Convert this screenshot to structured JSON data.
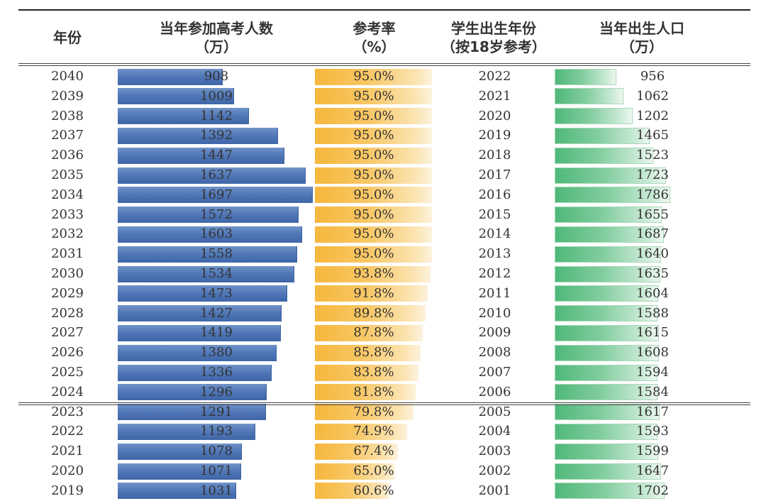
{
  "chart_data": {
    "type": "table",
    "columns": [
      {
        "key": "year",
        "label": [
          "年份"
        ]
      },
      {
        "key": "exam",
        "label": [
          "当年参加高考人数",
          "（万）"
        ]
      },
      {
        "key": "rate",
        "label": [
          "参考率",
          "（%）"
        ]
      },
      {
        "key": "birth_year",
        "label": [
          "学生出生年份",
          "（按18岁参考）"
        ]
      },
      {
        "key": "births",
        "label": [
          "当年出生人口",
          "（万）"
        ]
      }
    ],
    "bar_colors": {
      "exam": "#4f76b6",
      "rate": "#f6b73c",
      "births": "#4fb87a"
    },
    "rows": [
      {
        "year": "2040",
        "exam": 908,
        "rate": "95.0%",
        "rate_value": 95.0,
        "birth_year": "2022",
        "births": 956
      },
      {
        "year": "2039",
        "exam": 1009,
        "rate": "95.0%",
        "rate_value": 95.0,
        "birth_year": "2021",
        "births": 1062
      },
      {
        "year": "2038",
        "exam": 1142,
        "rate": "95.0%",
        "rate_value": 95.0,
        "birth_year": "2020",
        "births": 1202
      },
      {
        "year": "2037",
        "exam": 1392,
        "rate": "95.0%",
        "rate_value": 95.0,
        "birth_year": "2019",
        "births": 1465
      },
      {
        "year": "2036",
        "exam": 1447,
        "rate": "95.0%",
        "rate_value": 95.0,
        "birth_year": "2018",
        "births": 1523
      },
      {
        "year": "2035",
        "exam": 1637,
        "rate": "95.0%",
        "rate_value": 95.0,
        "birth_year": "2017",
        "births": 1723
      },
      {
        "year": "2034",
        "exam": 1697,
        "rate": "95.0%",
        "rate_value": 95.0,
        "birth_year": "2016",
        "births": 1786
      },
      {
        "year": "2033",
        "exam": 1572,
        "rate": "95.0%",
        "rate_value": 95.0,
        "birth_year": "2015",
        "births": 1655
      },
      {
        "year": "2032",
        "exam": 1603,
        "rate": "95.0%",
        "rate_value": 95.0,
        "birth_year": "2014",
        "births": 1687
      },
      {
        "year": "2031",
        "exam": 1558,
        "rate": "95.0%",
        "rate_value": 95.0,
        "birth_year": "2013",
        "births": 1640
      },
      {
        "year": "2030",
        "exam": 1534,
        "rate": "93.8%",
        "rate_value": 93.8,
        "birth_year": "2012",
        "births": 1635
      },
      {
        "year": "2029",
        "exam": 1473,
        "rate": "91.8%",
        "rate_value": 91.8,
        "birth_year": "2011",
        "births": 1604
      },
      {
        "year": "2028",
        "exam": 1427,
        "rate": "89.8%",
        "rate_value": 89.8,
        "birth_year": "2010",
        "births": 1588
      },
      {
        "year": "2027",
        "exam": 1419,
        "rate": "87.8%",
        "rate_value": 87.8,
        "birth_year": "2009",
        "births": 1615
      },
      {
        "year": "2026",
        "exam": 1380,
        "rate": "85.8%",
        "rate_value": 85.8,
        "birth_year": "2008",
        "births": 1608
      },
      {
        "year": "2025",
        "exam": 1336,
        "rate": "83.8%",
        "rate_value": 83.8,
        "birth_year": "2007",
        "births": 1594
      },
      {
        "year": "2024",
        "exam": 1296,
        "rate": "81.8%",
        "rate_value": 81.8,
        "birth_year": "2006",
        "births": 1584
      },
      {
        "year": "2023",
        "exam": 1291,
        "rate": "79.8%",
        "rate_value": 79.8,
        "birth_year": "2005",
        "births": 1617
      },
      {
        "year": "2022",
        "exam": 1193,
        "rate": "74.9%",
        "rate_value": 74.9,
        "birth_year": "2004",
        "births": 1593
      },
      {
        "year": "2021",
        "exam": 1078,
        "rate": "67.4%",
        "rate_value": 67.4,
        "birth_year": "2003",
        "births": 1599
      },
      {
        "year": "2020",
        "exam": 1071,
        "rate": "65.0%",
        "rate_value": 65.0,
        "birth_year": "2002",
        "births": 1647
      },
      {
        "year": "2019",
        "exam": 1031,
        "rate": "60.6%",
        "rate_value": 60.6,
        "birth_year": "2001",
        "births": 1702
      }
    ]
  }
}
